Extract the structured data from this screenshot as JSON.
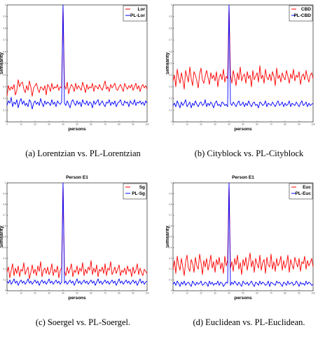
{
  "chart_data": [
    {
      "type": "line",
      "id": "a",
      "title": "",
      "caption": "(a) Lorentzian vs. PL-Lorentzian",
      "xlabel": "persons",
      "ylabel": "Similarity",
      "xlim": [
        0,
        100
      ],
      "xticks": [
        0,
        10,
        20,
        30,
        40,
        50,
        60,
        70,
        80,
        90,
        100
      ],
      "ylim": [
        0,
        1
      ],
      "yticks": [
        0,
        0.1,
        0.2,
        0.3,
        0.4,
        0.5,
        0.6,
        0.7,
        0.8,
        0.9,
        1
      ],
      "legend_position": "top-right",
      "grid": false,
      "series": [
        {
          "name": "Lor",
          "color": "#ff0000",
          "base": 0.29,
          "amp": 0.04,
          "seed": 11,
          "values": [
            0.22,
            0.31,
            0.27,
            0.3,
            0.28,
            0.32,
            0.23,
            0.27,
            0.36,
            0.3,
            0.33,
            0.34,
            0.28,
            0.25,
            0.31,
            0.27,
            0.35,
            0.3,
            0.22,
            0.29,
            0.31,
            0.33,
            0.28,
            0.25,
            0.3,
            0.29,
            0.27,
            0.31,
            0.23,
            0.32,
            0.3,
            0.26,
            0.33,
            0.28,
            0.3,
            0.29,
            0.32,
            0.27,
            0.3,
            0.29,
            1.0,
            0.31,
            0.28,
            0.34,
            0.24,
            0.29,
            0.32,
            0.3,
            0.26,
            0.33,
            0.28,
            0.31,
            0.29,
            0.27,
            0.34,
            0.3,
            0.25,
            0.32,
            0.28,
            0.3,
            0.29,
            0.33,
            0.26,
            0.31,
            0.3,
            0.28,
            0.32,
            0.29,
            0.27,
            0.31,
            0.35,
            0.28,
            0.3,
            0.26,
            0.32,
            0.29,
            0.31,
            0.33,
            0.28,
            0.27,
            0.3,
            0.32,
            0.29,
            0.26,
            0.33,
            0.3,
            0.28,
            0.31,
            0.29,
            0.32,
            0.27,
            0.3,
            0.33,
            0.28,
            0.31,
            0.26,
            0.3,
            0.32,
            0.29,
            0.31,
            0.28
          ]
        },
        {
          "name": "PL-Lor",
          "color": "#0000ff",
          "base": 0.16,
          "amp": 0.035,
          "seed": 23,
          "values": [
            0.14,
            0.18,
            0.16,
            0.21,
            0.13,
            0.17,
            0.15,
            0.19,
            0.12,
            0.17,
            0.2,
            0.15,
            0.18,
            0.14,
            0.16,
            0.13,
            0.19,
            0.17,
            0.11,
            0.16,
            0.18,
            0.15,
            0.17,
            0.14,
            0.2,
            0.16,
            0.13,
            0.18,
            0.15,
            0.17,
            0.16,
            0.14,
            0.19,
            0.15,
            0.17,
            0.13,
            0.18,
            0.16,
            0.15,
            0.17,
            1.0,
            0.16,
            0.14,
            0.18,
            0.15,
            0.12,
            0.17,
            0.19,
            0.16,
            0.14,
            0.18,
            0.15,
            0.17,
            0.13,
            0.19,
            0.16,
            0.15,
            0.18,
            0.14,
            0.17,
            0.16,
            0.12,
            0.18,
            0.15,
            0.17,
            0.19,
            0.14,
            0.16,
            0.18,
            0.15,
            0.13,
            0.17,
            0.16,
            0.19,
            0.14,
            0.17,
            0.15,
            0.18,
            0.13,
            0.16,
            0.17,
            0.19,
            0.15,
            0.14,
            0.18,
            0.16,
            0.17,
            0.13,
            0.18,
            0.16,
            0.15,
            0.19,
            0.14,
            0.17,
            0.16,
            0.18,
            0.15,
            0.17,
            0.14,
            0.18,
            0.16
          ]
        }
      ]
    },
    {
      "type": "line",
      "id": "b",
      "title": "",
      "caption": "(b) Cityblock vs. PL-Cityblock",
      "xlabel": "persons",
      "ylabel": "Similarity",
      "xlim": [
        0,
        100
      ],
      "xticks": [
        0,
        10,
        20,
        30,
        40,
        50,
        60,
        70,
        80,
        90,
        100
      ],
      "ylim": [
        0,
        1
      ],
      "yticks": [
        0,
        0.1,
        0.2,
        0.3,
        0.4,
        0.5,
        0.6,
        0.7,
        0.8,
        0.9,
        1
      ],
      "legend_position": "top-right",
      "grid": false,
      "series": [
        {
          "name": "CBD",
          "color": "#ff0000",
          "values": [
            0.35,
            0.4,
            0.3,
            0.45,
            0.38,
            0.33,
            0.42,
            0.36,
            0.28,
            0.44,
            0.39,
            0.34,
            0.47,
            0.37,
            0.31,
            0.43,
            0.4,
            0.35,
            0.29,
            0.41,
            0.46,
            0.36,
            0.33,
            0.39,
            0.44,
            0.38,
            0.32,
            0.42,
            0.37,
            0.4,
            0.35,
            0.43,
            0.3,
            0.38,
            0.41,
            0.36,
            0.45,
            0.34,
            0.39,
            0.37,
            1.0,
            0.4,
            0.33,
            0.44,
            0.38,
            0.31,
            0.42,
            0.36,
            0.47,
            0.35,
            0.39,
            0.41,
            0.33,
            0.43,
            0.37,
            0.4,
            0.3,
            0.44,
            0.36,
            0.39,
            0.42,
            0.34,
            0.48,
            0.37,
            0.4,
            0.33,
            0.45,
            0.38,
            0.36,
            0.41,
            0.35,
            0.43,
            0.39,
            0.31,
            0.46,
            0.37,
            0.4,
            0.34,
            0.42,
            0.38,
            0.36,
            0.44,
            0.39,
            0.33,
            0.41,
            0.37,
            0.45,
            0.35,
            0.4,
            0.38,
            0.43,
            0.32,
            0.39,
            0.41,
            0.36,
            0.44,
            0.38,
            0.34,
            0.4,
            0.42,
            0.37
          ]
        },
        {
          "name": "PL-CBD",
          "color": "#0000ff",
          "values": [
            0.14,
            0.16,
            0.13,
            0.18,
            0.15,
            0.12,
            0.17,
            0.14,
            0.16,
            0.19,
            0.13,
            0.15,
            0.17,
            0.12,
            0.16,
            0.14,
            0.18,
            0.15,
            0.13,
            0.16,
            0.17,
            0.14,
            0.15,
            0.19,
            0.13,
            0.16,
            0.14,
            0.17,
            0.15,
            0.12,
            0.16,
            0.18,
            0.14,
            0.15,
            0.13,
            0.17,
            0.16,
            0.14,
            0.15,
            0.13,
            1.0,
            0.16,
            0.14,
            0.17,
            0.15,
            0.13,
            0.16,
            0.18,
            0.14,
            0.15,
            0.17,
            0.13,
            0.16,
            0.14,
            0.18,
            0.15,
            0.13,
            0.16,
            0.17,
            0.14,
            0.15,
            0.12,
            0.17,
            0.16,
            0.14,
            0.15,
            0.18,
            0.13,
            0.16,
            0.15,
            0.14,
            0.17,
            0.15,
            0.13,
            0.16,
            0.18,
            0.14,
            0.15,
            0.17,
            0.13,
            0.16,
            0.14,
            0.15,
            0.18,
            0.13,
            0.16,
            0.15,
            0.14,
            0.17,
            0.15,
            0.13,
            0.16,
            0.18,
            0.14,
            0.15,
            0.17,
            0.13,
            0.16,
            0.14,
            0.15,
            0.16
          ]
        }
      ]
    },
    {
      "type": "line",
      "id": "c",
      "title": "Person E1",
      "caption": "(c) Soergel vs. PL-Soergel.",
      "xlabel": "persons",
      "ylabel": "Similarity",
      "xlim": [
        0,
        100
      ],
      "xticks": [
        0,
        10,
        20,
        30,
        40,
        50,
        60,
        70,
        80,
        90,
        100
      ],
      "ylim": [
        0,
        1
      ],
      "yticks": [
        0,
        0.1,
        0.2,
        0.3,
        0.4,
        0.5,
        0.6,
        0.7,
        0.8,
        0.9,
        1
      ],
      "legend_position": "top-right",
      "grid": false,
      "series": [
        {
          "name": "Sg",
          "color": "#ff0000",
          "values": [
            0.17,
            0.22,
            0.12,
            0.19,
            0.25,
            0.14,
            0.21,
            0.16,
            0.23,
            0.13,
            0.2,
            0.18,
            0.26,
            0.15,
            0.19,
            0.22,
            0.11,
            0.17,
            0.24,
            0.16,
            0.2,
            0.14,
            0.23,
            0.18,
            0.27,
            0.13,
            0.19,
            0.21,
            0.16,
            0.22,
            0.15,
            0.18,
            0.25,
            0.14,
            0.2,
            0.17,
            0.23,
            0.12,
            0.19,
            0.21,
            1.0,
            0.18,
            0.14,
            0.22,
            0.16,
            0.2,
            0.25,
            0.13,
            0.19,
            0.17,
            0.23,
            0.15,
            0.21,
            0.18,
            0.26,
            0.14,
            0.2,
            0.16,
            0.22,
            0.19,
            0.28,
            0.15,
            0.21,
            0.17,
            0.24,
            0.13,
            0.2,
            0.18,
            0.22,
            0.16,
            0.25,
            0.14,
            0.21,
            0.19,
            0.27,
            0.15,
            0.18,
            0.22,
            0.16,
            0.2,
            0.24,
            0.14,
            0.19,
            0.17,
            0.21,
            0.15,
            0.23,
            0.18,
            0.2,
            0.13,
            0.22,
            0.16,
            0.19,
            0.25,
            0.15,
            0.21,
            0.17,
            0.14,
            0.2,
            0.18,
            0.16
          ]
        },
        {
          "name": "PL-Sg",
          "color": "#0000ff",
          "values": [
            0.09,
            0.07,
            0.1,
            0.06,
            0.08,
            0.11,
            0.07,
            0.09,
            0.05,
            0.08,
            0.1,
            0.07,
            0.09,
            0.06,
            0.08,
            0.11,
            0.07,
            0.09,
            0.06,
            0.08,
            0.1,
            0.07,
            0.09,
            0.05,
            0.08,
            0.1,
            0.07,
            0.09,
            0.06,
            0.08,
            0.11,
            0.07,
            0.09,
            0.06,
            0.08,
            0.1,
            0.07,
            0.09,
            0.06,
            0.08,
            1.0,
            0.07,
            0.09,
            0.06,
            0.08,
            0.1,
            0.07,
            0.09,
            0.05,
            0.08,
            0.11,
            0.07,
            0.09,
            0.06,
            0.08,
            0.1,
            0.07,
            0.09,
            0.06,
            0.08,
            0.1,
            0.07,
            0.09,
            0.05,
            0.08,
            0.11,
            0.07,
            0.09,
            0.06,
            0.08,
            0.1,
            0.07,
            0.09,
            0.06,
            0.08,
            0.1,
            0.07,
            0.09,
            0.05,
            0.08,
            0.11,
            0.07,
            0.09,
            0.06,
            0.08,
            0.1,
            0.07,
            0.09,
            0.06,
            0.08,
            0.1,
            0.07,
            0.09,
            0.05,
            0.08,
            0.11,
            0.07,
            0.09,
            0.06,
            0.08,
            0.09
          ]
        }
      ]
    },
    {
      "type": "line",
      "id": "d",
      "title": "Person E1",
      "caption": "(d) Euclidean vs. PL-Euclidean.",
      "xlabel": "persons",
      "ylabel": "Similarity",
      "xlim": [
        0,
        100
      ],
      "xticks": [
        0,
        10,
        20,
        30,
        40,
        50,
        60,
        70,
        80,
        90,
        100
      ],
      "ylim": [
        0,
        1
      ],
      "yticks": [
        0,
        0.1,
        0.2,
        0.3,
        0.4,
        0.5,
        0.6,
        0.7,
        0.8,
        0.9,
        1
      ],
      "legend_position": "top-right",
      "grid": false,
      "series": [
        {
          "name": "Euc",
          "color": "#ff0000",
          "values": [
            0.2,
            0.28,
            0.16,
            0.32,
            0.24,
            0.19,
            0.3,
            0.22,
            0.14,
            0.27,
            0.33,
            0.21,
            0.18,
            0.29,
            0.25,
            0.17,
            0.31,
            0.23,
            0.2,
            0.34,
            0.26,
            0.15,
            0.28,
            0.22,
            0.3,
            0.19,
            0.25,
            0.33,
            0.21,
            0.27,
            0.17,
            0.29,
            0.24,
            0.31,
            0.2,
            0.26,
            0.16,
            0.32,
            0.23,
            0.28,
            1.0,
            0.21,
            0.27,
            0.18,
            0.3,
            0.24,
            0.33,
            0.2,
            0.26,
            0.15,
            0.29,
            0.23,
            0.31,
            0.19,
            0.27,
            0.35,
            0.22,
            0.28,
            0.17,
            0.3,
            0.25,
            0.21,
            0.33,
            0.19,
            0.26,
            0.29,
            0.16,
            0.31,
            0.24,
            0.22,
            0.34,
            0.2,
            0.27,
            0.18,
            0.3,
            0.23,
            0.26,
            0.32,
            0.19,
            0.28,
            0.21,
            0.25,
            0.33,
            0.17,
            0.29,
            0.24,
            0.2,
            0.31,
            0.26,
            0.22,
            0.3,
            0.18,
            0.27,
            0.25,
            0.32,
            0.2,
            0.28,
            0.23,
            0.26,
            0.3,
            0.22
          ]
        },
        {
          "name": "PL-Euc",
          "color": "#0000ff",
          "values": [
            0.06,
            0.08,
            0.05,
            0.09,
            0.07,
            0.04,
            0.08,
            0.06,
            0.09,
            0.05,
            0.07,
            0.08,
            0.06,
            0.04,
            0.09,
            0.07,
            0.05,
            0.08,
            0.06,
            0.07,
            0.09,
            0.05,
            0.06,
            0.08,
            0.07,
            0.04,
            0.09,
            0.06,
            0.08,
            0.05,
            0.07,
            0.06,
            0.09,
            0.05,
            0.08,
            0.07,
            0.04,
            0.06,
            0.08,
            0.07,
            1.0,
            0.05,
            0.08,
            0.06,
            0.09,
            0.07,
            0.05,
            0.08,
            0.06,
            0.04,
            0.09,
            0.07,
            0.06,
            0.08,
            0.05,
            0.07,
            0.09,
            0.06,
            0.04,
            0.08,
            0.07,
            0.05,
            0.09,
            0.06,
            0.08,
            0.07,
            0.05,
            0.06,
            0.09,
            0.04,
            0.08,
            0.07,
            0.06,
            0.05,
            0.09,
            0.07,
            0.08,
            0.06,
            0.04,
            0.08,
            0.07,
            0.05,
            0.09,
            0.06,
            0.07,
            0.08,
            0.05,
            0.06,
            0.09,
            0.07,
            0.04,
            0.08,
            0.06,
            0.07,
            0.05,
            0.09,
            0.06,
            0.08,
            0.07,
            0.05,
            0.06
          ]
        }
      ]
    }
  ]
}
